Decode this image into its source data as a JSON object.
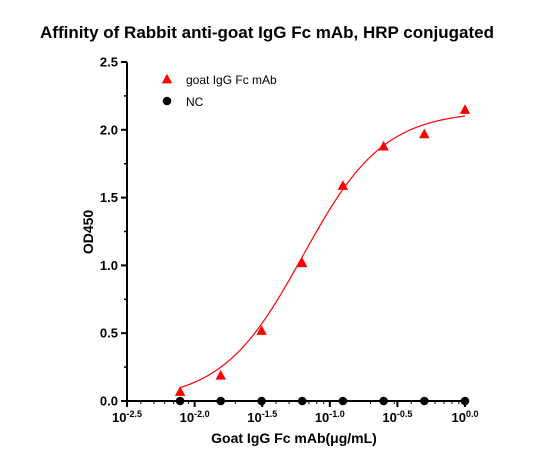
{
  "chart_data": {
    "type": "scatter",
    "title": "Affinity of  Rabbit anti-goat IgG Fc mAb, HRP conjugated",
    "xlabel": "Goat IgG Fc mAb(μg/mL)",
    "ylabel": "OD450",
    "x_scale": "log10",
    "xlim": [
      0.00316,
      1.0
    ],
    "ylim": [
      0,
      2.5
    ],
    "x_ticks": [
      {
        "base": "10",
        "exp": "-2.5",
        "value": -2.5
      },
      {
        "base": "10",
        "exp": "-2.0",
        "value": -2.0
      },
      {
        "base": "10",
        "exp": "-1.5",
        "value": -1.5
      },
      {
        "base": "10",
        "exp": "-1.0",
        "value": -1.0
      },
      {
        "base": "10",
        "exp": "-0.5",
        "value": -0.5
      },
      {
        "base": "10",
        "exp": "0.0",
        "value": 0.0
      }
    ],
    "y_ticks": [
      "0.0",
      "0.5",
      "1.0",
      "1.5",
      "2.0",
      "2.5"
    ],
    "legend_position": "top-left",
    "series": [
      {
        "name": "goat IgG Fc mAb",
        "marker": "triangle",
        "color": "#ff0000",
        "fit_curve": true,
        "x": [
          0.00781,
          0.0156,
          0.0313,
          0.0625,
          0.125,
          0.25,
          0.5,
          1.0
        ],
        "y": [
          0.07,
          0.19,
          0.52,
          1.02,
          1.59,
          1.88,
          1.97,
          2.15
        ]
      },
      {
        "name": "NC",
        "marker": "circle",
        "color": "#000000",
        "fit_curve": false,
        "x": [
          0.00781,
          0.0156,
          0.0313,
          0.0625,
          0.125,
          0.25,
          0.5,
          1.0
        ],
        "y": [
          0.0,
          0.0,
          0.0,
          0.0,
          0.0,
          0.0,
          0.0,
          0.0
        ]
      }
    ]
  }
}
